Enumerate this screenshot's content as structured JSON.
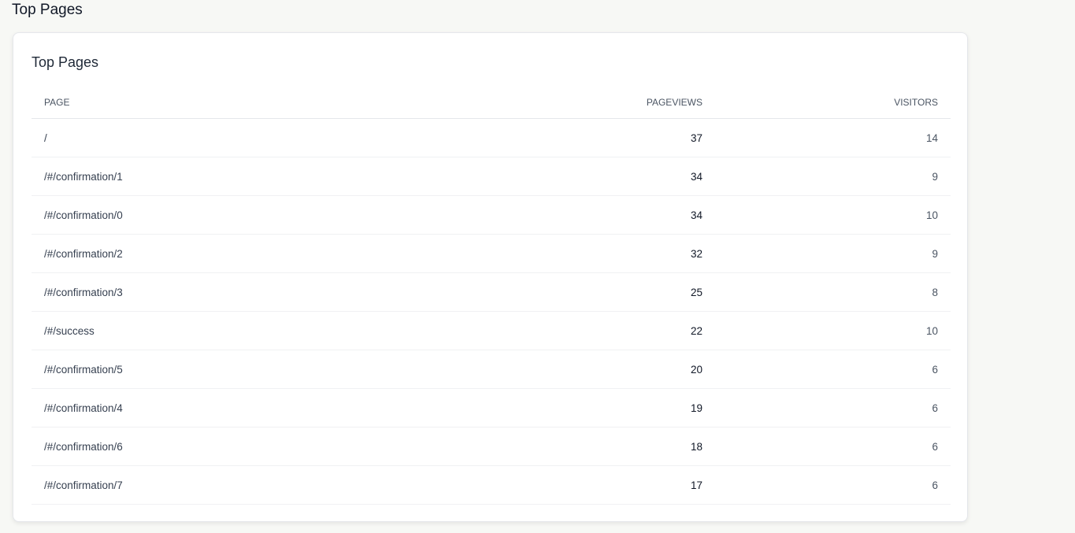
{
  "page_title": "Top Pages",
  "card": {
    "title": "Top Pages",
    "columns": [
      "PAGE",
      "PAGEVIEWS",
      "VISITORS"
    ],
    "rows": [
      {
        "page": "/",
        "pageviews": "37",
        "visitors": "14"
      },
      {
        "page": "/#/confirmation/1",
        "pageviews": "34",
        "visitors": "9"
      },
      {
        "page": "/#/confirmation/0",
        "pageviews": "34",
        "visitors": "10"
      },
      {
        "page": "/#/confirmation/2",
        "pageviews": "32",
        "visitors": "9"
      },
      {
        "page": "/#/confirmation/3",
        "pageviews": "25",
        "visitors": "8"
      },
      {
        "page": "/#/success",
        "pageviews": "22",
        "visitors": "10"
      },
      {
        "page": "/#/confirmation/5",
        "pageviews": "20",
        "visitors": "6"
      },
      {
        "page": "/#/confirmation/4",
        "pageviews": "19",
        "visitors": "6"
      },
      {
        "page": "/#/confirmation/6",
        "pageviews": "18",
        "visitors": "6"
      },
      {
        "page": "/#/confirmation/7",
        "pageviews": "17",
        "visitors": "6"
      }
    ]
  }
}
